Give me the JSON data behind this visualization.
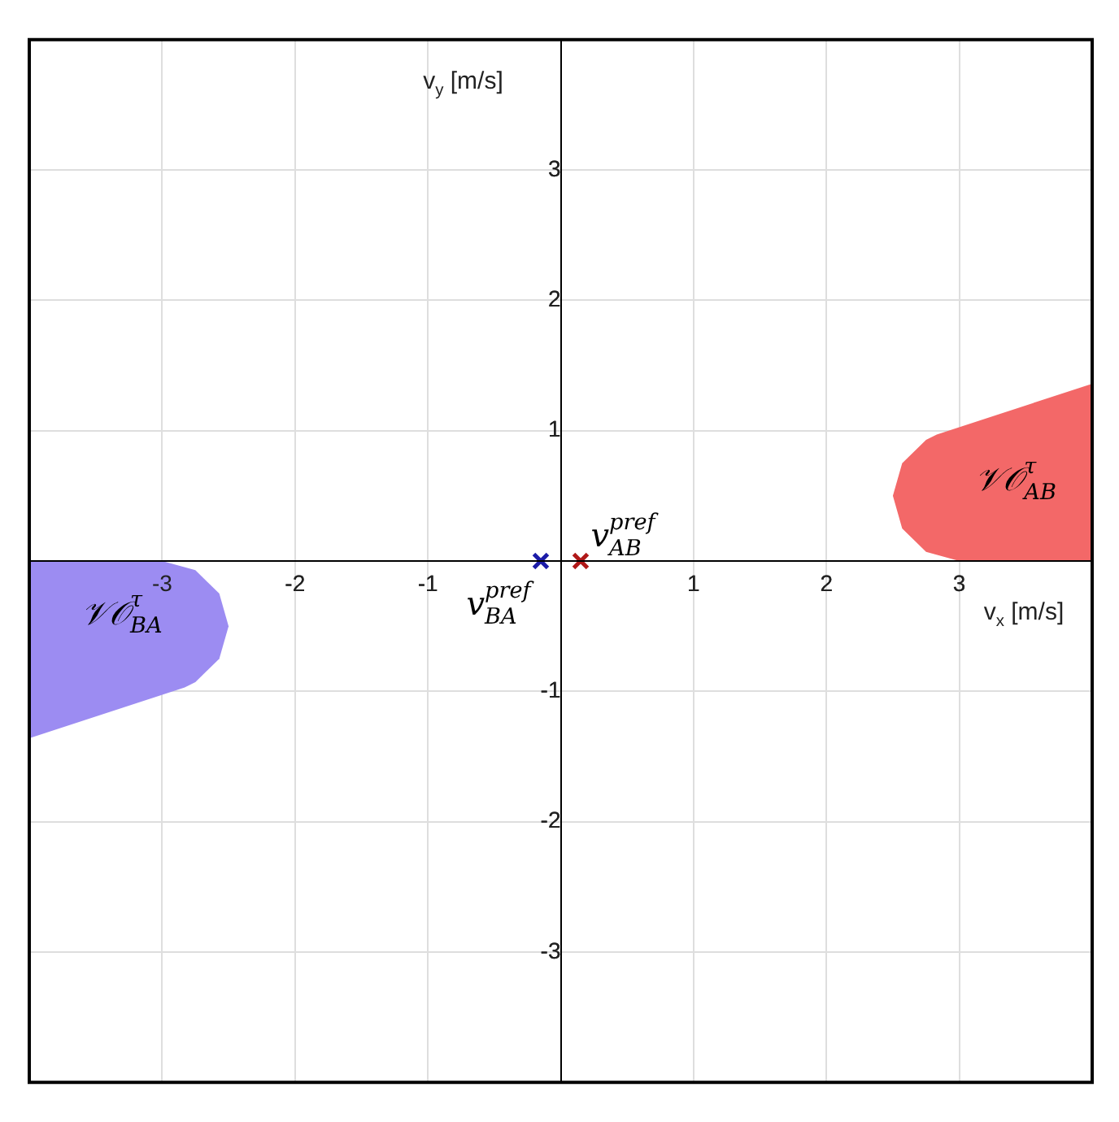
{
  "chart_data": {
    "type": "scatter",
    "xlabel": "v$_{x}$ [m/s]",
    "ylabel": "v$_{y}$ [m/s]",
    "xlim": [
      -4,
      4
    ],
    "ylim": [
      -4,
      4
    ],
    "xticks": [
      -3,
      -2,
      -1,
      {
        "value": 0,
        "label": null
      },
      1,
      2,
      3
    ],
    "yticks": [
      -3,
      -2,
      -1,
      {
        "value": 0,
        "label": null
      },
      1,
      2,
      3
    ],
    "grid": true,
    "legend": false,
    "series": [
      {
        "type": "area",
        "color": "#f36868",
        "x": [
          3,
          2.75,
          2.57,
          2.5,
          2.57,
          2.75,
          2.83,
          4,
          4,
          3
        ],
        "values": [
          0,
          0.07,
          0.25,
          0.5,
          0.75,
          0.93,
          0.97,
          1.36,
          0,
          0
        ]
      },
      {
        "type": "area",
        "color": "#9c8cf2",
        "x": [
          -3,
          -2.75,
          -2.57,
          -2.5,
          -2.57,
          -2.75,
          -2.83,
          -4,
          -4,
          -3
        ],
        "values": [
          0,
          -0.07,
          -0.25,
          -0.5,
          -0.75,
          -0.93,
          -0.97,
          -1.36,
          0,
          0
        ]
      },
      {
        "type": "scatter",
        "marker": "cross",
        "color": "#1c1ca8",
        "x": [
          -0.15
        ],
        "values": [
          0
        ]
      },
      {
        "type": "scatter",
        "marker": "cross",
        "color": "#b01818",
        "x": [
          0.15
        ],
        "values": [
          0
        ]
      }
    ],
    "annotations": [
      "𝒱𝒪$_{AB}$$^{τ}$",
      "𝒱𝒪$_{BA}$$^{τ}$",
      {
        "text": "v$_{AB}$$^{pref}$",
        "x": 0.15,
        "y": 0
      },
      {
        "text": "v$_{BA}$$^{pref}$",
        "x": -0.15,
        "y": 0
      }
    ]
  }
}
